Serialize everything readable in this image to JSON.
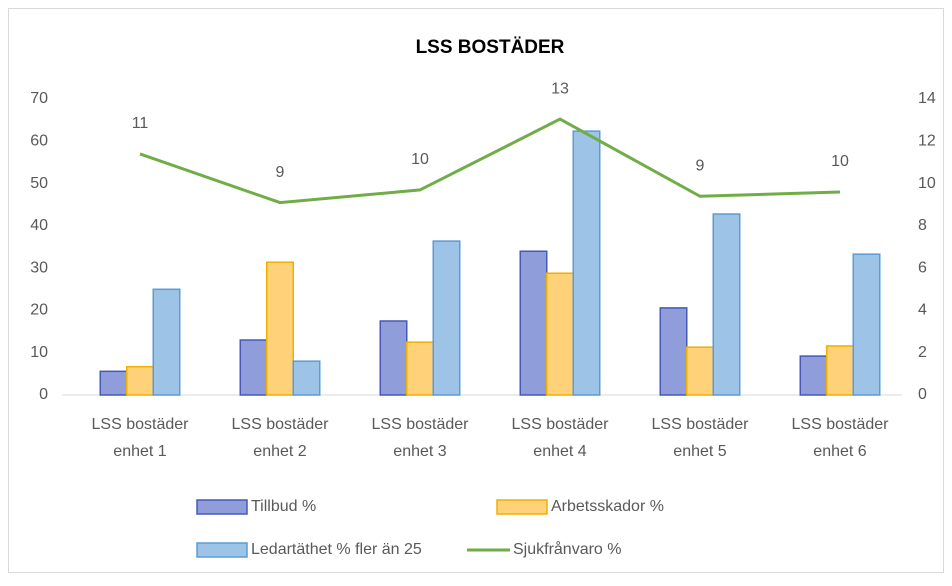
{
  "chart_data": {
    "type": "bar",
    "title": "LSS BOSTÄDER",
    "categories": [
      "LSS bostäder enhet 1",
      "LSS bostäder enhet 2",
      "LSS bostäder enhet 3",
      "LSS bostäder enhet 4",
      "LSS bostäder enhet 5",
      "LSS bostäder enhet 6"
    ],
    "series": [
      {
        "name": "Tillbud %",
        "type": "bar",
        "color": "#8f9ddb",
        "stroke": "#4659b8",
        "values": [
          5.6,
          13,
          17.5,
          34,
          20.6,
          9.2
        ]
      },
      {
        "name": "Arbetsskador %",
        "type": "bar",
        "color": "#ffd27a",
        "stroke": "#f0b000",
        "values": [
          6.7,
          31.4,
          12.5,
          28.8,
          11.3,
          11.6
        ]
      },
      {
        "name": "Ledartäthet % fler än 25",
        "type": "bar",
        "color": "#9dc3e6",
        "stroke": "#5b9bd5",
        "values": [
          25,
          8,
          36.4,
          62.4,
          42.8,
          33.3
        ]
      },
      {
        "name": "Sjukfrånvaro %",
        "type": "line",
        "axis": "y2",
        "color": "#70ad47",
        "values": [
          11.4,
          9.1,
          9.7,
          13.05,
          9.4,
          9.6
        ],
        "value_labels": [
          "11",
          "9",
          "10",
          "13",
          "9",
          "10"
        ]
      }
    ],
    "ylim": [
      0,
      70
    ],
    "yticks": [
      0,
      10,
      20,
      30,
      40,
      50,
      60,
      70
    ],
    "y2lim": [
      0,
      14
    ],
    "y2ticks": [
      0,
      2,
      4,
      6,
      8,
      10,
      12,
      14
    ],
    "grid": false
  }
}
